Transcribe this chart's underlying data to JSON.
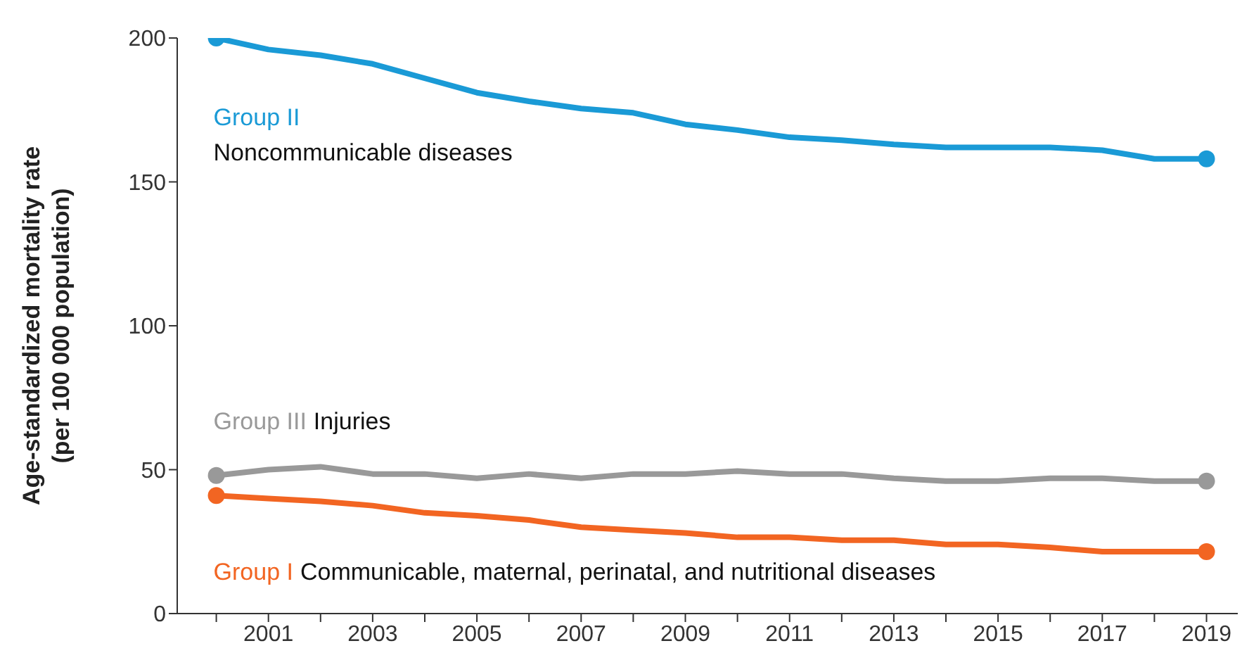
{
  "chart_data": {
    "type": "line",
    "ylabel": "Age-standardized mortality rate\n(per 100 000 population)",
    "x": [
      2000,
      2001,
      2002,
      2003,
      2004,
      2005,
      2006,
      2007,
      2008,
      2009,
      2010,
      2011,
      2012,
      2013,
      2014,
      2015,
      2016,
      2017,
      2018,
      2019
    ],
    "series": [
      {
        "name": "Group II",
        "color": "#1a9ad6",
        "values": [
          200,
          196,
          194,
          191,
          186,
          181,
          178,
          175.5,
          174,
          170,
          168,
          165.5,
          164.5,
          163,
          162,
          162,
          162,
          161,
          158,
          158
        ]
      },
      {
        "name": "Group III",
        "color": "#999999",
        "values": [
          48,
          50,
          51,
          48.5,
          48.5,
          47,
          48.5,
          47,
          48.5,
          48.5,
          49.5,
          48.5,
          48.5,
          47,
          46,
          46,
          47,
          47,
          46,
          46
        ]
      },
      {
        "name": "Group I",
        "color": "#f26522",
        "values": [
          41,
          40,
          39,
          37.5,
          35,
          34,
          32.5,
          30,
          29,
          28,
          26.5,
          26.5,
          25.5,
          25.5,
          24,
          24,
          23,
          21.5,
          21.5,
          21.5
        ]
      }
    ],
    "annotations": [
      "Noncommunicable diseases",
      "Injuries",
      "Communicable, maternal, perinatal, and nutritional diseases"
    ],
    "xlim": [
      1999.25,
      2019.6
    ],
    "ylim": [
      0,
      200
    ],
    "xticks": [
      {
        "value": 2000,
        "label": null
      },
      2001,
      {
        "value": 2002,
        "label": null
      },
      2003,
      {
        "value": 2004,
        "label": null
      },
      2005,
      {
        "value": 2006,
        "label": null
      },
      2007,
      {
        "value": 2008,
        "label": null
      },
      2009,
      {
        "value": 2010,
        "label": null
      },
      2011,
      {
        "value": 2012,
        "label": null
      },
      2013,
      {
        "value": 2014,
        "label": null
      },
      2015,
      {
        "value": 2016,
        "label": null
      },
      2017,
      {
        "value": 2018,
        "label": null
      },
      2019
    ],
    "yticks": [
      0,
      50,
      100,
      150,
      200
    ],
    "grid": false,
    "legend": false,
    "line_style": "solid"
  }
}
